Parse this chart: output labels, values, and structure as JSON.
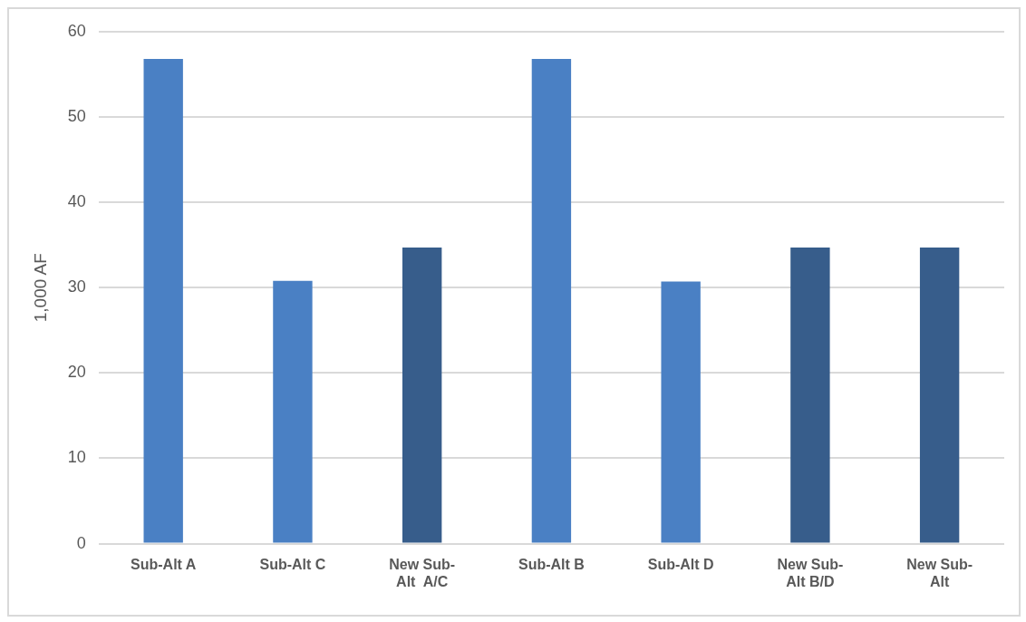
{
  "chart_data": {
    "type": "bar",
    "ylabel": "1,000 AF",
    "categories": [
      "Sub-Alt A",
      "Sub-Alt C",
      "New Sub-Alt  A/C",
      "Sub-Alt B",
      "Sub-Alt D",
      "New Sub-Alt B/D",
      "New Sub-Alt"
    ],
    "values": [
      56.8,
      30.8,
      34.7,
      56.8,
      30.7,
      34.7,
      34.7
    ],
    "colors": [
      "#4a80c4",
      "#4a80c4",
      "#375d8b",
      "#4a80c4",
      "#4a80c4",
      "#375d8b",
      "#375d8b"
    ],
    "ylim": [
      0,
      60
    ],
    "yticks": [
      0,
      10,
      20,
      30,
      40,
      50,
      60
    ],
    "grid": "y",
    "legend": false
  }
}
